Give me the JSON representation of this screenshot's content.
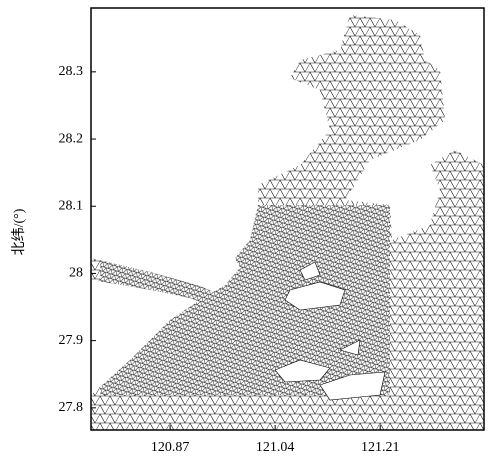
{
  "chart_data": {
    "type": "map",
    "ylabel": "北纬/(°)",
    "xlim": [
      120.742,
      121.378
    ],
    "ylim": [
      27.767,
      28.395
    ],
    "xticks": [
      120.87,
      121.04,
      121.21
    ],
    "yticks": [
      27.8,
      27.9,
      28.0,
      28.1,
      28.2,
      28.3
    ]
  }
}
